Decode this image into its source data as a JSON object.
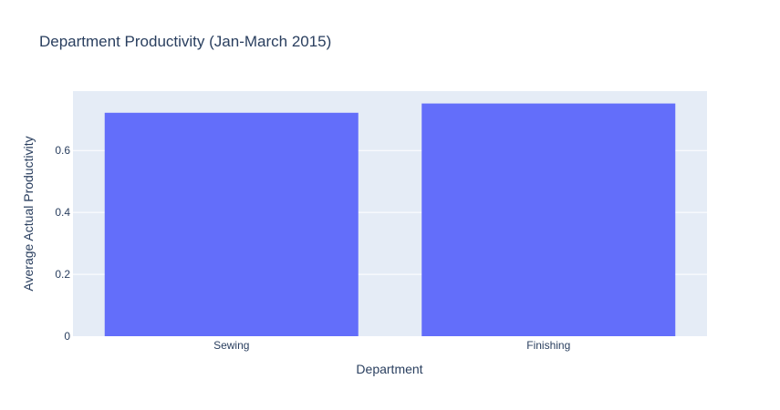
{
  "chart_data": {
    "type": "bar",
    "title": "Department Productivity (Jan-March 2015)",
    "xlabel": "Department",
    "ylabel": "Average Actual Productivity",
    "categories": [
      "Sewing",
      "Finishing"
    ],
    "values": [
      0.722,
      0.752
    ],
    "ylim": [
      0,
      0.792
    ],
    "yticks": [
      0,
      0.2,
      0.4,
      0.6
    ],
    "ytick_labels": [
      "0",
      "0.2",
      "0.4",
      "0.6"
    ],
    "grid": true,
    "legend": "none",
    "colors": {
      "bar": "#636efa",
      "plot_background": "#e5ecf6",
      "grid": "#ffffff",
      "text": "#2a3f5f"
    }
  }
}
